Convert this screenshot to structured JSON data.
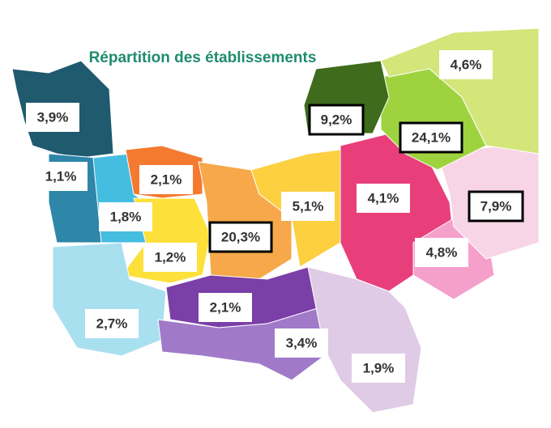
{
  "title": "Répartition des établissements",
  "regions": [
    {
      "label": "3,9%",
      "color": "#1f5a6e",
      "highlight": false
    },
    {
      "label": "1,1%",
      "color": "#2e86a8",
      "highlight": false
    },
    {
      "label": "1,8%",
      "color": "#45bde0",
      "highlight": false
    },
    {
      "label": "2,1%",
      "color": "#f47a30",
      "highlight": false
    },
    {
      "label": "1,2%",
      "color": "#fde03a",
      "highlight": false
    },
    {
      "label": "20,3%",
      "color": "#f6a84a",
      "highlight": true
    },
    {
      "label": "5,1%",
      "color": "#fcd040",
      "highlight": false
    },
    {
      "label": "4,1%",
      "color": "#e83f7a",
      "highlight": false
    },
    {
      "label": "4,8%",
      "color": "#f5a0cb",
      "highlight": false
    },
    {
      "label": "7,9%",
      "color": "#f7d4e6",
      "highlight": true
    },
    {
      "label": "24,1%",
      "color": "#9ed33f",
      "highlight": true
    },
    {
      "label": "9,2%",
      "color": "#3e6b1c",
      "highlight": true
    },
    {
      "label": "4,6%",
      "color": "#d4e57a",
      "highlight": false
    },
    {
      "label": "2,7%",
      "color": "#a9e0f0",
      "highlight": false
    },
    {
      "label": "2,1%",
      "color": "#7b3fa8",
      "highlight": false
    },
    {
      "label": "3,4%",
      "color": "#a07ac8",
      "highlight": false
    },
    {
      "label": "1,9%",
      "color": "#e0cbe6",
      "highlight": false
    }
  ]
}
